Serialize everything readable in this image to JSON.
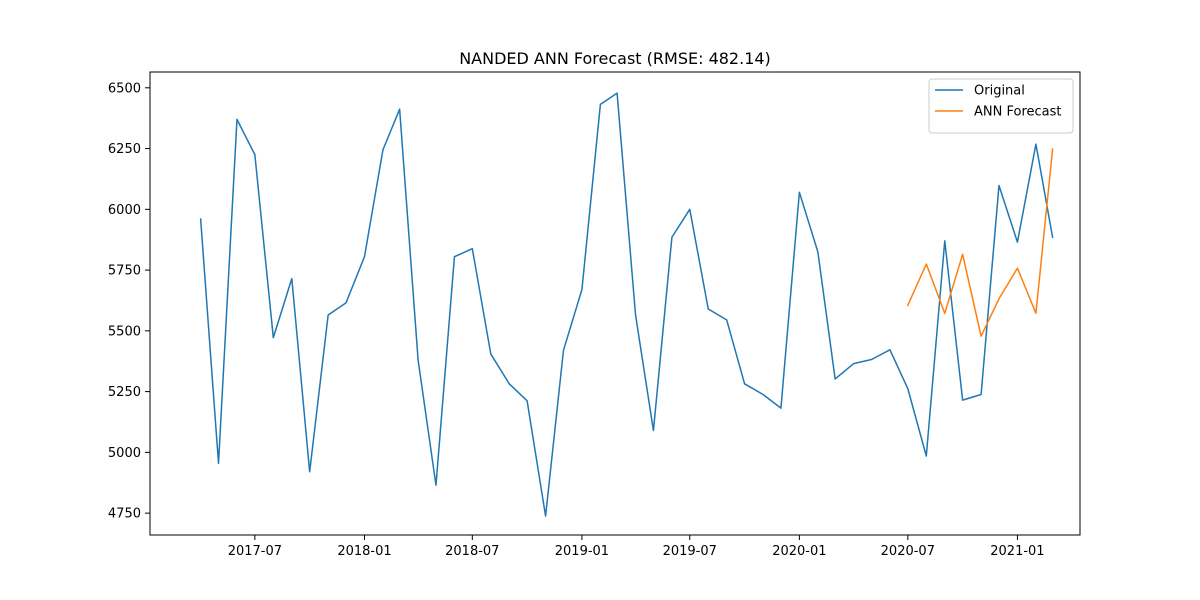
{
  "chart_data": {
    "type": "line",
    "title": "NANDED ANN Forecast (RMSE: 482.14)",
    "xlabel": "",
    "ylabel": "",
    "x_type": "date",
    "xlim": [
      "2017-01-06",
      "2021-04-16"
    ],
    "ylim": [
      4660,
      6565
    ],
    "x_ticks": [
      {
        "date": "2017-07-01",
        "label": "2017-07"
      },
      {
        "date": "2018-01-01",
        "label": "2018-01"
      },
      {
        "date": "2018-07-01",
        "label": "2018-07"
      },
      {
        "date": "2019-01-01",
        "label": "2019-01"
      },
      {
        "date": "2019-07-01",
        "label": "2019-07"
      },
      {
        "date": "2020-01-01",
        "label": "2020-01"
      },
      {
        "date": "2020-07-01",
        "label": "2020-07"
      },
      {
        "date": "2021-01-01",
        "label": "2021-01"
      }
    ],
    "y_ticks": [
      4750,
      5000,
      5250,
      5500,
      5750,
      6000,
      6250,
      6500
    ],
    "grid": false,
    "legend": {
      "position": "top-right"
    },
    "series": [
      {
        "name": "Original",
        "color": "#1f77b4",
        "points": [
          [
            "2017-04-01",
            5960
          ],
          [
            "2017-05-01",
            4955
          ],
          [
            "2017-06-01",
            6370
          ],
          [
            "2017-07-01",
            6225
          ],
          [
            "2017-08-01",
            5472
          ],
          [
            "2017-09-01",
            5715
          ],
          [
            "2017-10-01",
            4920
          ],
          [
            "2017-11-01",
            5565
          ],
          [
            "2017-12-01",
            5615
          ],
          [
            "2018-01-01",
            5805
          ],
          [
            "2018-02-01",
            6245
          ],
          [
            "2018-03-01",
            6412
          ],
          [
            "2018-04-01",
            5380
          ],
          [
            "2018-05-01",
            4865
          ],
          [
            "2018-06-01",
            5805
          ],
          [
            "2018-07-01",
            5838
          ],
          [
            "2018-08-01",
            5405
          ],
          [
            "2018-09-01",
            5282
          ],
          [
            "2018-10-01",
            5212
          ],
          [
            "2018-11-01",
            4738
          ],
          [
            "2018-12-01",
            5420
          ],
          [
            "2019-01-01",
            5670
          ],
          [
            "2019-02-01",
            6432
          ],
          [
            "2019-03-01",
            6478
          ],
          [
            "2019-04-01",
            5565
          ],
          [
            "2019-05-01",
            5090
          ],
          [
            "2019-06-01",
            5885
          ],
          [
            "2019-07-01",
            6000
          ],
          [
            "2019-08-01",
            5590
          ],
          [
            "2019-09-01",
            5545
          ],
          [
            "2019-10-01",
            5282
          ],
          [
            "2019-11-01",
            5238
          ],
          [
            "2019-12-01",
            5182
          ],
          [
            "2020-01-01",
            6070
          ],
          [
            "2020-02-01",
            5825
          ],
          [
            "2020-03-01",
            5302
          ],
          [
            "2020-04-01",
            5365
          ],
          [
            "2020-05-01",
            5382
          ],
          [
            "2020-06-01",
            5422
          ],
          [
            "2020-07-01",
            5262
          ],
          [
            "2020-08-01",
            4985
          ],
          [
            "2020-09-01",
            5870
          ],
          [
            "2020-10-01",
            5215
          ],
          [
            "2020-11-01",
            5238
          ],
          [
            "2020-12-01",
            6098
          ],
          [
            "2021-01-01",
            5865
          ],
          [
            "2021-02-01",
            6268
          ],
          [
            "2021-03-01",
            5885
          ]
        ]
      },
      {
        "name": "ANN Forecast",
        "color": "#ff7f0e",
        "points": [
          [
            "2020-07-01",
            5605
          ],
          [
            "2020-08-01",
            5775
          ],
          [
            "2020-09-01",
            5572
          ],
          [
            "2020-10-01",
            5815
          ],
          [
            "2020-11-01",
            5478
          ],
          [
            "2020-12-01",
            5632
          ],
          [
            "2021-01-01",
            5758
          ],
          [
            "2021-02-01",
            5572
          ],
          [
            "2021-03-01",
            6248
          ]
        ]
      }
    ]
  }
}
